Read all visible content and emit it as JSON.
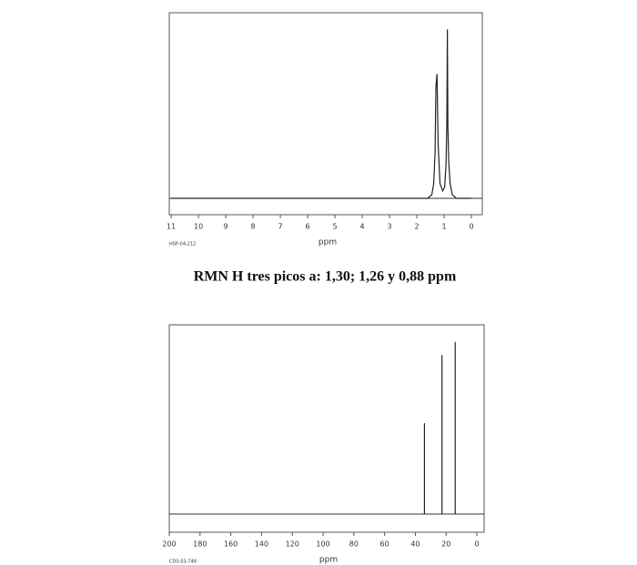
{
  "chart_data": [
    {
      "type": "line",
      "code": "HSP-04-212",
      "xlabel": "ppm",
      "x": [
        11,
        1.6,
        1.45,
        1.38,
        1.33,
        1.3,
        1.26,
        1.22,
        1.15,
        1.05,
        0.98,
        0.93,
        0.9,
        0.88,
        0.86,
        0.83,
        0.78,
        0.7,
        0.55,
        0
      ],
      "values": [
        0,
        0,
        2,
        8,
        25,
        60,
        67,
        30,
        8,
        4,
        6,
        18,
        40,
        91,
        38,
        20,
        8,
        2,
        0,
        0
      ],
      "xlim": [
        11.07,
        -0.4
      ],
      "ylim": [
        0,
        100
      ],
      "xticks": [
        11,
        10,
        9,
        8,
        7,
        6,
        5,
        4,
        3,
        2,
        1,
        0
      ],
      "color": "#222"
    },
    {
      "type": "stem",
      "code": "CDS-03-748",
      "xlabel": "ppm",
      "x": [
        34.1,
        22.7,
        14.1
      ],
      "values": [
        48,
        84,
        91
      ],
      "xlim": [
        200,
        -4.7
      ],
      "ylim": [
        0,
        100
      ],
      "xticks": [
        200,
        180,
        160,
        140,
        120,
        100,
        80,
        60,
        40,
        20,
        0
      ],
      "color": "#222"
    }
  ],
  "caption": "RMN H tres picos a: 1,30; 1,26 y 0,88 ppm"
}
